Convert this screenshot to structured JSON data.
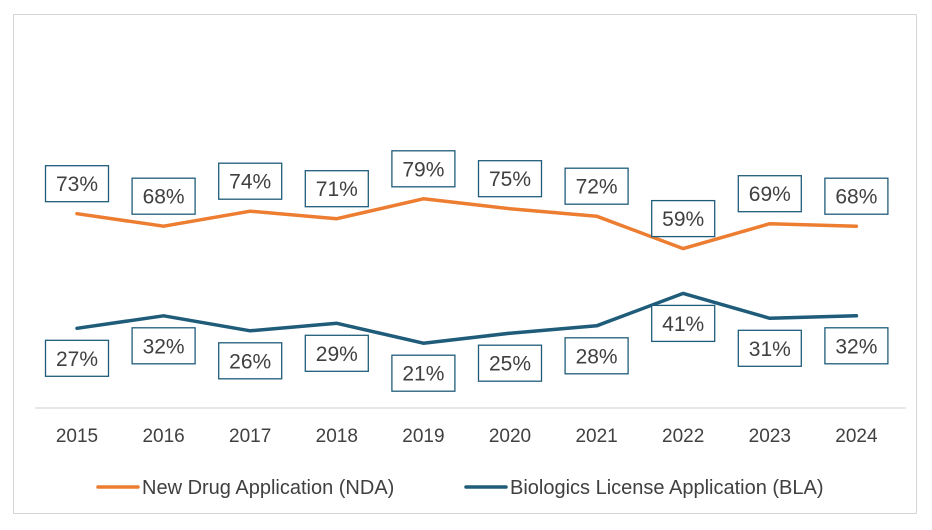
{
  "chart_data": {
    "type": "line",
    "title": "",
    "xlabel": "",
    "ylabel": "",
    "x": [
      "2015",
      "2016",
      "2017",
      "2018",
      "2019",
      "2020",
      "2021",
      "2022",
      "2023",
      "2024"
    ],
    "series": [
      {
        "name": "New Drug Application (NDA)",
        "color": "#ed7d31",
        "values": [
          73,
          68,
          74,
          71,
          79,
          75,
          72,
          59,
          69,
          68
        ],
        "labels": [
          "73%",
          "68%",
          "74%",
          "71%",
          "79%",
          "75%",
          "72%",
          "59%",
          "69%",
          "68%"
        ]
      },
      {
        "name": "Biologics License Application (BLA)",
        "color": "#1f5c7a",
        "values": [
          27,
          32,
          26,
          29,
          21,
          25,
          28,
          41,
          31,
          32
        ],
        "labels": [
          "27%",
          "32%",
          "26%",
          "29%",
          "21%",
          "25%",
          "28%",
          "41%",
          "31%",
          "32%"
        ]
      }
    ],
    "grid": false,
    "legend_position": "bottom",
    "data_label_box_color": "#1f5c7a"
  }
}
